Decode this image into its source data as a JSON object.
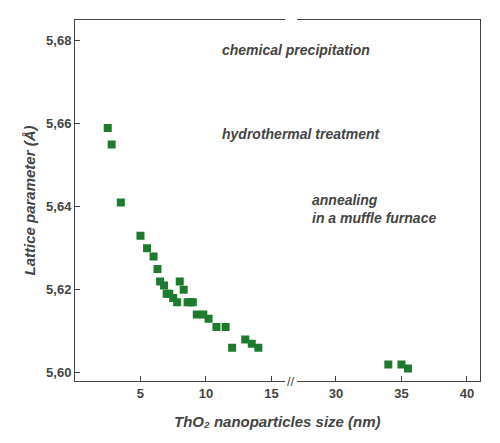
{
  "chart_data": [
    {
      "type": "scatter",
      "x": [
        2.5,
        2.8,
        3.5,
        5.0,
        5.5,
        6.0,
        6.3,
        6.5,
        6.8,
        7.0,
        7.2,
        7.5,
        7.8,
        8.0,
        8.3,
        8.6,
        8.8,
        9.0,
        9.3,
        9.8,
        10.2,
        10.8,
        11.5,
        12.0,
        13.0,
        13.5,
        14.0
      ],
      "values": [
        5.659,
        5.655,
        5.641,
        5.633,
        5.63,
        5.628,
        5.625,
        5.622,
        5.621,
        5.619,
        5.619,
        5.618,
        5.617,
        5.622,
        5.62,
        5.617,
        5.617,
        5.617,
        5.614,
        5.614,
        5.613,
        5.611,
        5.611,
        5.606,
        5.608,
        5.607,
        5.606
      ],
      "color": "#1e7a2e",
      "marker": "square",
      "xlim": [
        0,
        16
      ],
      "xticks": [
        5,
        10,
        15
      ],
      "ylim": [
        5.598,
        5.685
      ],
      "yticks": [
        {
          "value": 5.6,
          "label": "5,60"
        },
        {
          "value": 5.62,
          "label": "5,62"
        },
        {
          "value": 5.64,
          "label": "5,64"
        },
        {
          "value": 5.66,
          "label": "5,66"
        },
        {
          "value": 5.68,
          "label": "5,68"
        }
      ],
      "ylabel": "Lattice parameter (Å)",
      "xlabel": "ThO₂ nanoparticles size (nm)",
      "annotations": [
        "chemical precipitation",
        "hydrothermal treatment",
        "annealing\nin a muffle furnace",
        "//"
      ],
      "grid": false
    },
    {
      "type": "scatter",
      "x": [
        34.0,
        35.0,
        35.5
      ],
      "values": [
        5.602,
        5.602,
        5.601
      ],
      "color": "#1e7a2e",
      "marker": "square",
      "xlim": [
        27,
        41
      ],
      "xticks": [
        30,
        35,
        40
      ],
      "ylim": [
        5.598,
        5.685
      ],
      "tick_labels": "x",
      "grid": false
    }
  ]
}
